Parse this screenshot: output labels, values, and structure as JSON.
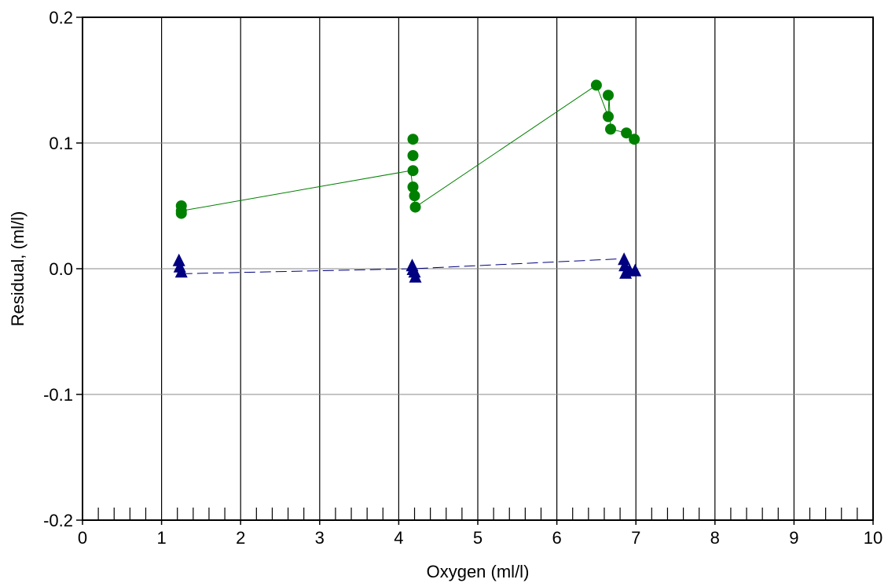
{
  "chart_data": {
    "type": "scatter",
    "title": "",
    "xlabel": "Oxygen (ml/l)",
    "ylabel": "Residual, (ml/l)",
    "xlim": [
      0,
      10
    ],
    "ylim": [
      -0.2,
      0.2
    ],
    "x_ticks": [
      0,
      1,
      2,
      3,
      4,
      5,
      6,
      7,
      8,
      9,
      10
    ],
    "x_tick_labels": [
      "0",
      "1",
      "2",
      "3",
      "4",
      "5",
      "6",
      "7",
      "8",
      "9",
      "10"
    ],
    "y_ticks": [
      -0.2,
      -0.1,
      0.0,
      0.1,
      0.2
    ],
    "y_tick_labels": [
      "-0.2",
      "-0.1",
      "0.0",
      "0.1",
      "0.2"
    ],
    "grid": true,
    "series": [
      {
        "color": "#008000",
        "marker": "circle",
        "points": [
          {
            "x": 1.25,
            "y": 0.05
          },
          {
            "x": 1.25,
            "y": 0.046
          },
          {
            "x": 1.25,
            "y": 0.044
          },
          {
            "x": 4.18,
            "y": 0.103
          },
          {
            "x": 4.18,
            "y": 0.09
          },
          {
            "x": 4.18,
            "y": 0.078
          },
          {
            "x": 4.18,
            "y": 0.065
          },
          {
            "x": 4.2,
            "y": 0.058
          },
          {
            "x": 4.21,
            "y": 0.049
          },
          {
            "x": 6.5,
            "y": 0.146
          },
          {
            "x": 6.65,
            "y": 0.138
          },
          {
            "x": 6.65,
            "y": 0.121
          },
          {
            "x": 6.68,
            "y": 0.111
          },
          {
            "x": 6.88,
            "y": 0.108
          },
          {
            "x": 6.98,
            "y": 0.103
          }
        ],
        "fit_line": [
          {
            "x": 1.25,
            "y": 0.046
          },
          {
            "x": 4.15,
            "y": 0.078
          },
          {
            "x": 4.21,
            "y": 0.049
          },
          {
            "x": 6.5,
            "y": 0.146
          },
          {
            "x": 6.65,
            "y": 0.121
          },
          {
            "x": 6.66,
            "y": 0.138
          },
          {
            "x": 6.68,
            "y": 0.111
          },
          {
            "x": 6.88,
            "y": 0.108
          },
          {
            "x": 6.98,
            "y": 0.103
          }
        ],
        "line_style": "solid"
      },
      {
        "color": "#000080",
        "marker": "triangle",
        "points": [
          {
            "x": 1.22,
            "y": 0.006
          },
          {
            "x": 1.23,
            "y": 0.001
          },
          {
            "x": 1.25,
            "y": -0.003
          },
          {
            "x": 4.17,
            "y": 0.002
          },
          {
            "x": 4.18,
            "y": -0.001
          },
          {
            "x": 4.2,
            "y": -0.003
          },
          {
            "x": 4.21,
            "y": -0.007
          },
          {
            "x": 6.85,
            "y": 0.007
          },
          {
            "x": 6.86,
            "y": 0.002
          },
          {
            "x": 6.87,
            "y": -0.004
          },
          {
            "x": 6.92,
            "y": -0.002
          },
          {
            "x": 6.99,
            "y": -0.002
          }
        ],
        "fit_line": [
          {
            "x": 1.25,
            "y": -0.004
          },
          {
            "x": 4.18,
            "y": 0.0
          },
          {
            "x": 6.85,
            "y": 0.008
          }
        ],
        "line_style": "dashed"
      }
    ]
  }
}
